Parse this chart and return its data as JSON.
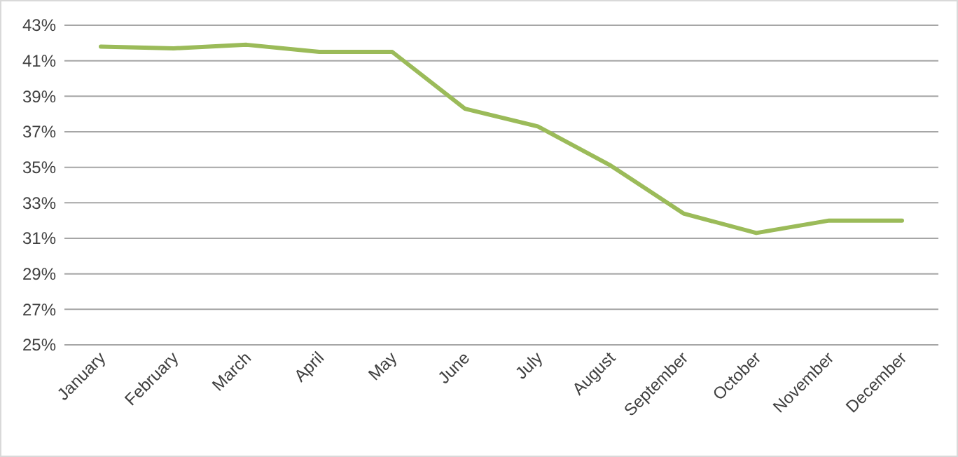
{
  "chart_data": {
    "type": "line",
    "categories": [
      "January",
      "February",
      "March",
      "April",
      "May",
      "June",
      "July",
      "August",
      "September",
      "October",
      "November",
      "December"
    ],
    "series": [
      {
        "color": "#9bbb59",
        "values": [
          41.8,
          41.7,
          41.9,
          41.5,
          41.5,
          38.3,
          37.3,
          35.1,
          32.4,
          31.3,
          32.0,
          32.0
        ]
      }
    ],
    "ylim": [
      25,
      43
    ],
    "yticks": [
      {
        "value": 25,
        "label": "25%"
      },
      {
        "value": 27,
        "label": "27%"
      },
      {
        "value": 29,
        "label": "29%"
      },
      {
        "value": 31,
        "label": "31%"
      },
      {
        "value": 33,
        "label": "33%"
      },
      {
        "value": 35,
        "label": "35%"
      },
      {
        "value": 37,
        "label": "37%"
      },
      {
        "value": 39,
        "label": "39%"
      },
      {
        "value": 41,
        "label": "41%"
      },
      {
        "value": 43,
        "label": "43%"
      }
    ],
    "grid": "y",
    "marker": "none",
    "line_style": "solid"
  }
}
